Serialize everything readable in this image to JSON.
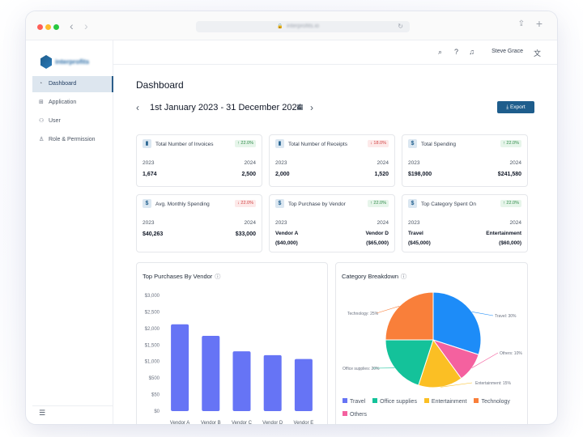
{
  "browser": {
    "url": "interprofits.io"
  },
  "app": {
    "logo_text": "interprofits"
  },
  "sidebar": {
    "items": [
      {
        "label": "Dashboard",
        "icon": "dashboard-icon"
      },
      {
        "label": "Application",
        "icon": "grid-icon"
      },
      {
        "label": "User",
        "icon": "users-icon"
      },
      {
        "label": "Role & Permission",
        "icon": "user-role-icon"
      }
    ]
  },
  "topbar": {
    "user_name": "Steve Grace"
  },
  "page": {
    "title": "Dashboard",
    "date_range": "1st January 2023 - 31 December 2024",
    "export_label": "Export"
  },
  "cards": [
    {
      "title": "Total Number of Invoices",
      "icon": "bar-chart-icon",
      "change": "↑ 22.0%",
      "trend": "up",
      "year1": "2023",
      "year2": "2024",
      "value1": "1,674",
      "value2": "2,500"
    },
    {
      "title": "Total Number of Receipts",
      "icon": "bar-chart-icon",
      "change": "↓ 18.0%",
      "trend": "down",
      "year1": "2023",
      "year2": "2024",
      "value1": "2,000",
      "value2": "1,520"
    },
    {
      "title": "Total Spending",
      "icon": "dollar-icon",
      "change": "↑ 22.0%",
      "trend": "up",
      "year1": "2023",
      "year2": "2024",
      "value1": "$198,000",
      "value2": "$241,580"
    },
    {
      "title": "Avg. Monthly Spending",
      "icon": "dollar-icon",
      "change": "↓ 22.0%",
      "trend": "down",
      "year1": "2023",
      "year2": "2024",
      "value1": "$40,263",
      "value2": "$33,000"
    },
    {
      "title": "Top Purchase by Vendor",
      "icon": "dollar-icon",
      "change": "↑ 22.0%",
      "trend": "up",
      "year1": "2023",
      "year2": "2024",
      "name1": "Vendor A",
      "name2": "Vendor D",
      "amount1": "($40,000)",
      "amount2": "($65,000)"
    },
    {
      "title": "Top Category Spent On",
      "icon": "dollar-icon",
      "change": "↑ 22.0%",
      "trend": "up",
      "year1": "2023",
      "year2": "2024",
      "name1": "Travel",
      "name2": "Entertainment",
      "amount1": "($45,000)",
      "amount2": "($60,000)"
    }
  ],
  "colors": {
    "accent": "#1e5d8c",
    "bar": "#6674f5",
    "travel": "#1d8cf8",
    "office_supplies": "#14c29a",
    "entertainment": "#fbbf24",
    "technology": "#f97f3a",
    "others": "#f4619f"
  },
  "chart_data": [
    {
      "type": "bar",
      "title": "Top Purchases By Vendor",
      "categories": [
        "Vendor A",
        "Vendor B",
        "Vendor C",
        "Vendor D",
        "Vendor E"
      ],
      "values": [
        2250,
        1950,
        1550,
        1450,
        1350
      ],
      "y_ticks": [
        "$0",
        "$50",
        "$500",
        "$1,000",
        "$1,500",
        "$2,000",
        "$2,500",
        "$3,000"
      ],
      "ylim": [
        0,
        3000
      ],
      "grid": false,
      "xlabel": "",
      "ylabel": ""
    },
    {
      "type": "pie",
      "title": "Category Breakdown",
      "slices": [
        {
          "name": "Travel",
          "value": 30,
          "label": "Travel: 30%"
        },
        {
          "name": "Others",
          "value": 10,
          "label": "Others: 10%"
        },
        {
          "name": "Entertainment",
          "value": 15,
          "label": "Entertainment: 15%"
        },
        {
          "name": "Office supplies",
          "value": 20,
          "label": "Office supplies: 20%"
        },
        {
          "name": "Technology",
          "value": 25,
          "label": "Technology: 25%"
        }
      ],
      "legend": [
        "Travel",
        "Office supplies",
        "Entertainment",
        "Technology",
        "Others"
      ],
      "legend_position": "bottom"
    }
  ]
}
